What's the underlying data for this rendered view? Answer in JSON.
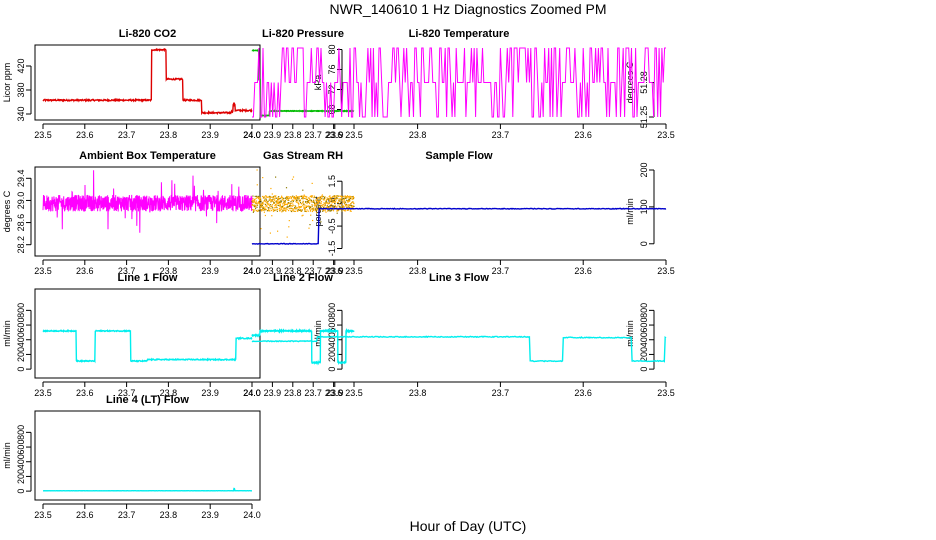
{
  "title": "NWR_140610  1 Hz Diagnostics Zoomed PM",
  "xlabel": "Hour of Day (UTC)",
  "chart_data": [
    {
      "type": "line",
      "title": "Li-820 CO2",
      "ylabel": "Licor ppm",
      "color": "#dd0000",
      "xlim": [
        23.5,
        24.0
      ],
      "xticks": [
        "23.5",
        "23.6",
        "23.7",
        "23.8",
        "23.9",
        "24.0"
      ],
      "ylim": [
        335,
        450
      ],
      "yticks": [
        "340",
        "380",
        "420"
      ],
      "noise": 1.2,
      "steps": [
        [
          23.5,
          363
        ],
        [
          23.76,
          447
        ],
        [
          23.795,
          398
        ],
        [
          23.835,
          363
        ],
        [
          23.88,
          342
        ],
        [
          23.95,
          344
        ],
        [
          23.955,
          356
        ],
        [
          23.96,
          346
        ],
        [
          23.999,
          346
        ]
      ]
    },
    {
      "type": "line",
      "title": "Li-820 Pressure",
      "ylabel": "kPa",
      "color": "#00bb00",
      "xlim": [
        23.5,
        24.0
      ],
      "xticks": [
        "23.5",
        "23.6",
        "23.7",
        "23.8",
        "23.9",
        "24.0"
      ],
      "ylim": [
        66.5,
        80.3
      ],
      "yticks": [
        "68",
        "72",
        "76",
        "80"
      ],
      "noise": 0.05,
      "steps": [
        [
          23.5,
          67.7
        ],
        [
          23.91,
          67.7
        ],
        [
          23.915,
          66.8
        ],
        [
          23.955,
          66.8
        ],
        [
          23.96,
          74
        ],
        [
          23.967,
          79.8
        ],
        [
          23.999,
          79.8
        ]
      ]
    },
    {
      "type": "line",
      "title": "Li-820 Temperature",
      "ylabel": "degrees C",
      "color": "#ff00ff",
      "xlim": [
        23.5,
        24.0
      ],
      "xticks": [
        "23.5",
        "23.6",
        "23.7",
        "23.8",
        "23.9",
        "24.0"
      ],
      "ylim": [
        51.25,
        51.31
      ],
      "yticks": [
        "51.25",
        "51.28"
      ],
      "toggle": [
        51.25,
        51.28,
        51.31
      ]
    },
    {
      "type": "line",
      "title": "Ambient Box Temperature",
      "ylabel": "degrees C",
      "color": "#ff00ff",
      "xlim": [
        23.5,
        24.0
      ],
      "xticks": [
        "23.5",
        "23.6",
        "23.7",
        "23.8",
        "23.9",
        "24.0"
      ],
      "ylim": [
        28.05,
        29.55
      ],
      "yticks": [
        "28.2",
        "28.6",
        "29.0",
        "29.4"
      ],
      "noisy": {
        "base": 28.95,
        "amp": 0.15,
        "spike": 0.5
      }
    },
    {
      "type": "scatter",
      "title": "Gas Stream RH",
      "ylabel": "percent",
      "color": "#ffaa00",
      "color2": "#8a7a00",
      "xlim": [
        23.5,
        24.0
      ],
      "xticks": [
        "23.5",
        "23.6",
        "23.7",
        "23.8",
        "23.9",
        "24.0"
      ],
      "ylim": [
        -1.7,
        2.0
      ],
      "yticks": [
        "-1.5",
        "-0.5",
        "0.5",
        "1.5"
      ],
      "noisy": {
        "base": 0.5,
        "amp": 0.35,
        "spike": 1.3
      }
    },
    {
      "type": "line",
      "title": "Sample Flow",
      "ylabel": "ml/min",
      "color": "#0000cc",
      "xlim": [
        23.5,
        24.0
      ],
      "xticks": [
        "23.5",
        "23.6",
        "23.7",
        "23.8",
        "23.9",
        "24.0"
      ],
      "ylim": [
        -25,
        200
      ],
      "yticks": [
        "0",
        "100",
        "200"
      ],
      "noise": 0.8,
      "steps": [
        [
          23.5,
          95
        ],
        [
          23.91,
          95
        ],
        [
          23.92,
          0
        ],
        [
          23.999,
          0
        ]
      ]
    },
    {
      "type": "line",
      "title": "Line 1 Flow",
      "ylabel": "ml/min",
      "color": "#00eeee",
      "xlim": [
        23.5,
        24.0
      ],
      "xticks": [
        "23.5",
        "23.6",
        "23.7",
        "23.8",
        "23.9",
        "24.0"
      ],
      "ylim": [
        -80,
        1050
      ],
      "yticks": [
        "0",
        "200",
        "400",
        "600",
        "800"
      ],
      "noise": 7,
      "steps": [
        [
          23.5,
          520
        ],
        [
          23.58,
          110
        ],
        [
          23.625,
          520
        ],
        [
          23.71,
          110
        ],
        [
          23.75,
          130
        ],
        [
          23.96,
          130
        ],
        [
          23.962,
          420
        ],
        [
          23.999,
          420
        ]
      ]
    },
    {
      "type": "line",
      "title": "Line 2 Flow",
      "ylabel": "ml/min",
      "color": "#00eeee",
      "xlim": [
        23.5,
        24.0
      ],
      "xticks": [
        "23.5",
        "23.6",
        "23.7",
        "23.8",
        "23.9",
        "24.0"
      ],
      "ylim": [
        -80,
        1050
      ],
      "yticks": [
        "0",
        "200",
        "400",
        "600",
        "800"
      ],
      "noise": 6,
      "steps": [
        [
          23.5,
          520
        ],
        [
          23.54,
          90
        ],
        [
          23.58,
          520
        ],
        [
          23.665,
          90
        ],
        [
          23.708,
          520
        ],
        [
          23.96,
          520
        ],
        [
          23.962,
          460
        ],
        [
          23.999,
          460
        ]
      ]
    },
    {
      "type": "line",
      "title": "Line 3 Flow",
      "ylabel": "ml/min",
      "color": "#00eeee",
      "xlim": [
        23.5,
        24.0
      ],
      "xticks": [
        "23.5",
        "23.6",
        "23.7",
        "23.8",
        "23.9",
        "24.0"
      ],
      "ylim": [
        -80,
        1050
      ],
      "yticks": [
        "0",
        "200",
        "400",
        "600",
        "800"
      ],
      "noise": 6,
      "steps": [
        [
          23.5,
          430
        ],
        [
          23.502,
          110
        ],
        [
          23.542,
          430
        ],
        [
          23.625,
          110
        ],
        [
          23.665,
          440
        ],
        [
          23.92,
          440
        ],
        [
          23.922,
          380
        ],
        [
          23.999,
          380
        ]
      ]
    },
    {
      "type": "line",
      "title": "Line 4 (LT) Flow",
      "ylabel": "ml/min",
      "color": "#00eeee",
      "xlim": [
        23.5,
        24.0
      ],
      "xticks": [
        "23.5",
        "23.6",
        "23.7",
        "23.8",
        "23.9",
        "24.0"
      ],
      "ylim": [
        -80,
        1050
      ],
      "yticks": [
        "0",
        "200",
        "400",
        "600",
        "800"
      ],
      "noise": 1,
      "steps": [
        [
          23.5,
          5
        ],
        [
          23.955,
          5
        ],
        [
          23.957,
          35
        ],
        [
          23.959,
          5
        ],
        [
          23.999,
          5
        ]
      ]
    }
  ]
}
